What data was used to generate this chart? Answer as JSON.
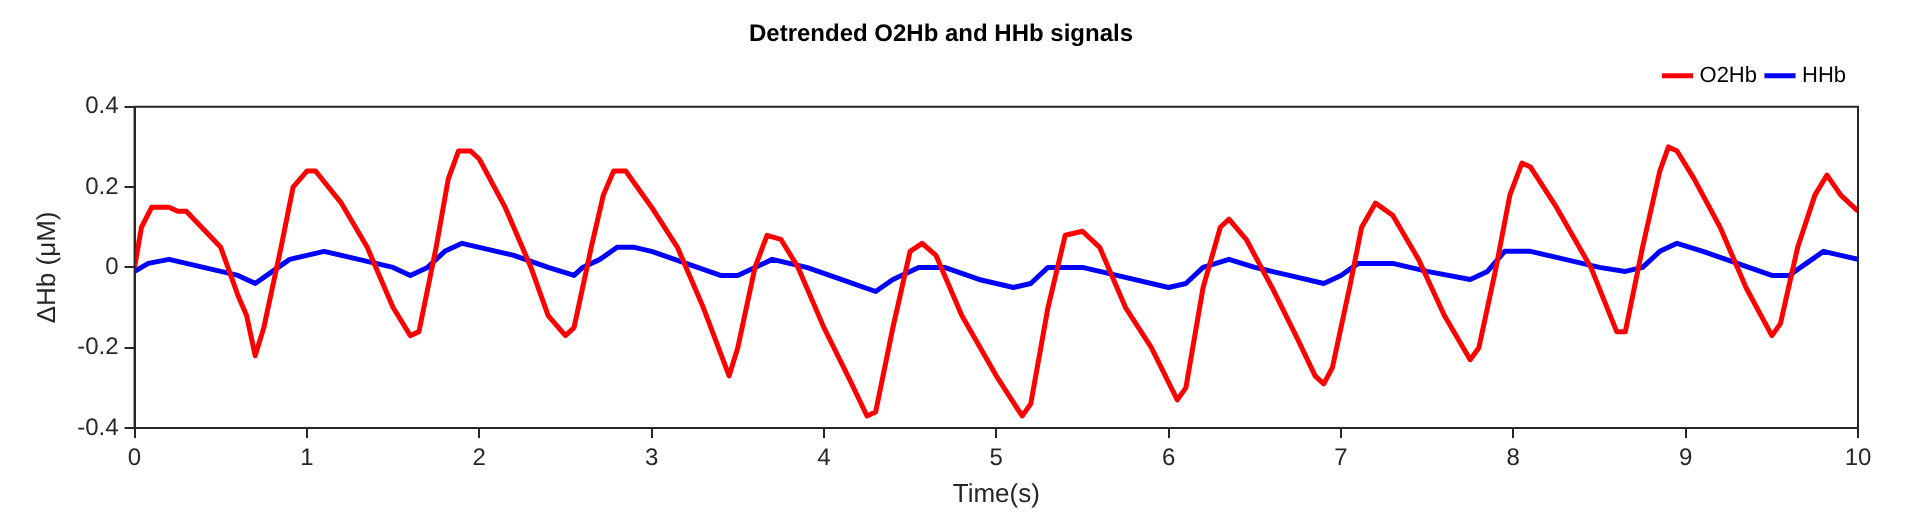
{
  "chart_data": {
    "type": "line",
    "title": "Detrended O2Hb and HHb signals",
    "xlabel": "Time(s)",
    "ylabel": "ΔHb (μM)",
    "xlim": [
      0,
      10
    ],
    "xticks": [
      0,
      1,
      2,
      3,
      4,
      5,
      6,
      7,
      8,
      9,
      10
    ],
    "ylim": [
      -0.4,
      0.4
    ],
    "yticks": [
      -0.4,
      -0.2,
      0,
      0.2,
      0.4
    ],
    "grid": false,
    "legend": "top right",
    "marker": "none",
    "line_style": "solid",
    "series": [
      {
        "name": "O2Hb",
        "color": "#ff0000",
        "x": [
          0,
          0.04,
          0.1,
          0.2,
          0.25,
          0.3,
          0.5,
          0.6,
          0.65,
          0.7,
          0.75,
          0.85,
          0.92,
          1.0,
          1.05,
          1.2,
          1.35,
          1.5,
          1.6,
          1.65,
          1.75,
          1.82,
          1.88,
          1.95,
          2.0,
          2.15,
          2.3,
          2.4,
          2.5,
          2.55,
          2.65,
          2.72,
          2.78,
          2.85,
          3.0,
          3.15,
          3.3,
          3.45,
          3.5,
          3.6,
          3.67,
          3.75,
          3.85,
          4.0,
          4.15,
          4.25,
          4.3,
          4.4,
          4.5,
          4.57,
          4.65,
          4.8,
          5.0,
          5.15,
          5.2,
          5.3,
          5.4,
          5.5,
          5.6,
          5.75,
          5.9,
          6.05,
          6.1,
          6.2,
          6.3,
          6.35,
          6.45,
          6.6,
          6.75,
          6.85,
          6.9,
          6.95,
          7.05,
          7.12,
          7.2,
          7.3,
          7.45,
          7.6,
          7.75,
          7.8,
          7.9,
          7.98,
          8.05,
          8.1,
          8.25,
          8.45,
          8.6,
          8.65,
          8.75,
          8.85,
          8.9,
          8.95,
          9.05,
          9.2,
          9.35,
          9.5,
          9.55,
          9.65,
          9.75,
          9.82,
          9.9,
          10
        ],
        "values": [
          0,
          0.1,
          0.15,
          0.15,
          0.14,
          0.14,
          0.05,
          -0.07,
          -0.12,
          -0.22,
          -0.15,
          0.05,
          0.2,
          0.24,
          0.24,
          0.16,
          0.05,
          -0.1,
          -0.17,
          -0.16,
          0.05,
          0.22,
          0.29,
          0.29,
          0.27,
          0.15,
          0,
          -0.12,
          -0.17,
          -0.15,
          0.05,
          0.18,
          0.24,
          0.24,
          0.15,
          0.05,
          -0.1,
          -0.27,
          -0.2,
          0,
          0.08,
          0.07,
          0,
          -0.15,
          -0.28,
          -0.37,
          -0.36,
          -0.15,
          0.04,
          0.06,
          0.03,
          -0.12,
          -0.27,
          -0.37,
          -0.34,
          -0.1,
          0.08,
          0.09,
          0.05,
          -0.1,
          -0.2,
          -0.33,
          -0.3,
          -0.05,
          0.1,
          0.12,
          0.07,
          -0.05,
          -0.18,
          -0.27,
          -0.29,
          -0.25,
          -0.05,
          0.1,
          0.16,
          0.13,
          0.02,
          -0.12,
          -0.23,
          -0.2,
          0,
          0.18,
          0.26,
          0.25,
          0.15,
          0,
          -0.16,
          -0.16,
          0.05,
          0.24,
          0.3,
          0.29,
          0.22,
          0.1,
          -0.05,
          -0.17,
          -0.14,
          0.05,
          0.18,
          0.23,
          0.18,
          0.14
        ]
      },
      {
        "name": "HHb",
        "color": "#0000ff",
        "x": [
          0,
          0.08,
          0.2,
          0.4,
          0.5,
          0.6,
          0.7,
          0.8,
          0.9,
          1.0,
          1.1,
          1.3,
          1.5,
          1.6,
          1.7,
          1.8,
          1.9,
          2.0,
          2.2,
          2.4,
          2.55,
          2.6,
          2.7,
          2.8,
          2.9,
          3.0,
          3.2,
          3.4,
          3.5,
          3.6,
          3.7,
          3.9,
          4.1,
          4.3,
          4.4,
          4.55,
          4.7,
          4.9,
          5.1,
          5.2,
          5.3,
          5.5,
          5.7,
          6.0,
          6.1,
          6.2,
          6.35,
          6.5,
          6.7,
          6.9,
          7.0,
          7.1,
          7.3,
          7.5,
          7.75,
          7.85,
          7.95,
          8.1,
          8.3,
          8.5,
          8.65,
          8.75,
          8.85,
          8.95,
          9.1,
          9.3,
          9.5,
          9.6,
          9.7,
          9.8,
          9.9,
          10
        ],
        "values": [
          -0.01,
          0.01,
          0.02,
          0,
          -0.01,
          -0.02,
          -0.04,
          -0.01,
          0.02,
          0.03,
          0.04,
          0.02,
          0,
          -0.02,
          0,
          0.04,
          0.06,
          0.05,
          0.03,
          0,
          -0.02,
          0,
          0.02,
          0.05,
          0.05,
          0.04,
          0.01,
          -0.02,
          -0.02,
          0,
          0.02,
          0,
          -0.03,
          -0.06,
          -0.03,
          0,
          0,
          -0.03,
          -0.05,
          -0.04,
          0,
          0,
          -0.02,
          -0.05,
          -0.04,
          0,
          0.02,
          0,
          -0.02,
          -0.04,
          -0.02,
          0.01,
          0.01,
          -0.01,
          -0.03,
          -0.01,
          0.04,
          0.04,
          0.02,
          0,
          -0.01,
          0,
          0.04,
          0.06,
          0.04,
          0.01,
          -0.02,
          -0.02,
          0.01,
          0.04,
          0.03,
          0.02
        ]
      }
    ]
  }
}
